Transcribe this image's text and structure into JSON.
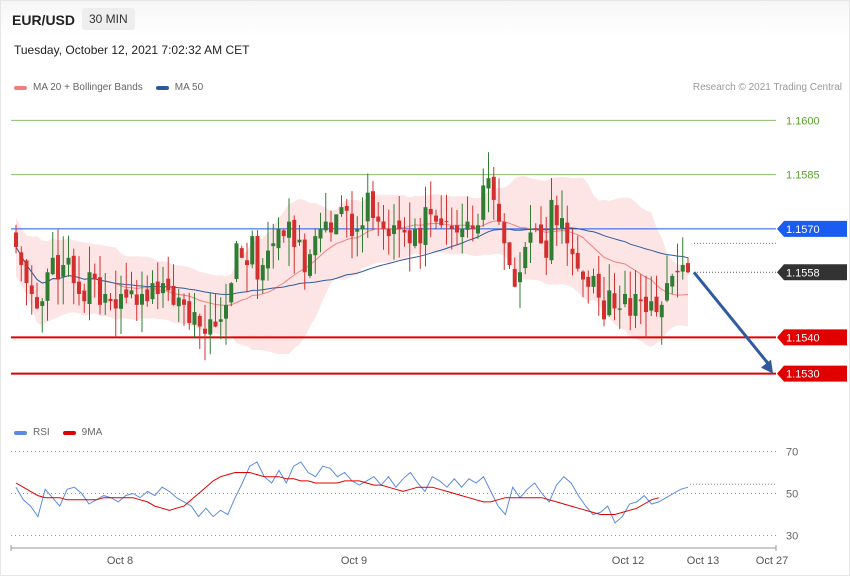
{
  "header": {
    "symbol": "EUR/USD",
    "interval": "30 MIN",
    "datetime": "Tuesday, October 12, 2021 7:02:32 AM CET",
    "copyright": "Research © 2021 Trading Central"
  },
  "legend": {
    "main": [
      {
        "label": "MA 20 + Bollinger Bands",
        "color": "#f08080"
      },
      {
        "label": "MA 50",
        "color": "#2e5b9e"
      }
    ],
    "rsi": [
      {
        "label": "RSI",
        "color": "#5b8be0"
      },
      {
        "label": "9MA",
        "color": "#e00000"
      }
    ]
  },
  "chart_data": [
    {
      "type": "candlestick",
      "y_range": [
        1.1518,
        1.1607
      ],
      "x_ticks": [
        "Oct 8",
        "Oct 9",
        "Oct 12",
        "Oct 13",
        "Oct 27"
      ],
      "levels": [
        {
          "value": 1.16,
          "label": "1.1600",
          "kind": "resistance",
          "color": "#5aa02c"
        },
        {
          "value": 1.1585,
          "label": "1.1585",
          "kind": "resistance",
          "color": "#5aa02c"
        },
        {
          "value": 1.157,
          "label": "1.1570",
          "kind": "pivot",
          "color": "#1a5cf0"
        },
        {
          "value": 1.154,
          "label": "1.1540",
          "kind": "support",
          "color": "#e00000"
        },
        {
          "value": 1.153,
          "label": "1.1530",
          "kind": "support",
          "color": "#e00000"
        }
      ],
      "last_price": {
        "value": 1.1558,
        "label": "1.1558",
        "color": "#333333"
      },
      "forecast_arrow": {
        "from": 1.1558,
        "to": 1.153,
        "color": "#2e5b9e"
      },
      "closes": [
        1.1565,
        1.156,
        1.1555,
        1.1552,
        1.1548,
        1.155,
        1.1558,
        1.1562,
        1.1556,
        1.156,
        1.1562,
        1.1555,
        1.1552,
        1.155,
        1.1558,
        1.1556,
        1.1549,
        1.1552,
        1.155,
        1.1548,
        1.1552,
        1.1551,
        1.1553,
        1.1549,
        1.1552,
        1.155,
        1.1555,
        1.1552,
        1.1555,
        1.1553,
        1.1549,
        1.1551,
        1.1549,
        1.1544,
        1.1547,
        1.1543,
        1.1541,
        1.1545,
        1.1543,
        1.1545,
        1.1549,
        1.1555,
        1.1566,
        1.1562,
        1.156,
        1.1568,
        1.1556,
        1.156,
        1.1564,
        1.1566,
        1.157,
        1.1568,
        1.1572,
        1.1565,
        1.1567,
        1.1558,
        1.1563,
        1.1568,
        1.157,
        1.1572,
        1.1569,
        1.1574,
        1.1576,
        1.1575,
        1.1568,
        1.157,
        1.1571,
        1.158,
        1.1573,
        1.1572,
        1.157,
        1.1568,
        1.1571,
        1.157,
        1.1569,
        1.1566,
        1.157,
        1.1566,
        1.1576,
        1.1574,
        1.1572,
        1.1571,
        1.1572,
        1.157,
        1.1569,
        1.157,
        1.1572,
        1.157,
        1.1571,
        1.1582,
        1.1584,
        1.1578,
        1.1572,
        1.1566,
        1.156,
        1.1554,
        1.1558,
        1.1565,
        1.1569,
        1.157,
        1.1566,
        1.1562,
        1.1578,
        1.1571,
        1.1573,
        1.1566,
        1.1563,
        1.1559,
        1.1556,
        1.1554,
        1.1557,
        1.1551,
        1.1545,
        1.1553,
        1.1548,
        1.1548,
        1.1552,
        1.1546,
        1.1552,
        1.155,
        1.1547,
        1.155,
        1.1547,
        1.1549,
        1.1555,
        1.1557,
        1.1558,
        1.156,
        1.1558
      ],
      "ma50_range": [
        "start: 1.1553",
        "end: 1.1562"
      ]
    },
    {
      "type": "line",
      "name": "RSI panel",
      "y_range": [
        25,
        75
      ],
      "y_ticks": [
        70,
        50,
        30
      ],
      "series": [
        {
          "name": "RSI",
          "values": [
            53,
            47,
            44,
            39,
            52,
            48,
            44,
            52,
            53,
            50,
            45,
            47,
            49,
            48,
            46,
            49,
            50,
            48,
            51,
            49,
            53,
            51,
            48,
            46,
            44,
            39,
            43,
            39,
            42,
            40,
            48,
            55,
            63,
            65,
            58,
            55,
            61,
            55,
            63,
            65,
            60,
            58,
            63,
            62,
            58,
            60,
            56,
            54,
            56,
            58,
            54,
            58,
            53,
            57,
            60,
            55,
            51,
            58,
            56,
            53,
            57,
            53,
            57,
            55,
            58,
            51,
            44,
            40,
            53,
            48,
            52,
            55,
            50,
            46,
            54,
            58,
            55,
            49,
            44,
            40,
            41,
            44,
            36,
            39,
            45,
            46,
            49,
            45,
            46,
            48,
            50,
            52,
            53
          ]
        },
        {
          "name": "9MA",
          "values": [
            55,
            53,
            51,
            49,
            48,
            48,
            48,
            47,
            47,
            47,
            47,
            47,
            48,
            48,
            48,
            48,
            48,
            47,
            46,
            44,
            43,
            42,
            43,
            44,
            47,
            50,
            53,
            56,
            58,
            59,
            60,
            60,
            60,
            59,
            58,
            58,
            58,
            57,
            57,
            56,
            56,
            55,
            55,
            55,
            55,
            56,
            56,
            56,
            55,
            54,
            54,
            53,
            52,
            51,
            52,
            53,
            53,
            53,
            52,
            51,
            50,
            49,
            48,
            47,
            46,
            46,
            47,
            48,
            48,
            48,
            48,
            48,
            48,
            47,
            46,
            45,
            44,
            43,
            42,
            41,
            40,
            40,
            40,
            41,
            42,
            43,
            45,
            47,
            48
          ]
        }
      ]
    }
  ]
}
